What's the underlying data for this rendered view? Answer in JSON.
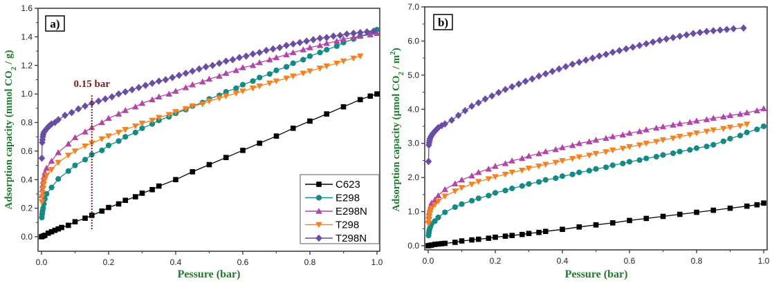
{
  "chart_data": [
    {
      "type": "line",
      "panel_label": "a)",
      "title": "",
      "xlabel": "Pessure (bar)",
      "ylabel": "Adsorption capacity (mmol CO",
      "ylabel_sub": "2",
      "ylabel_tail": " / g)",
      "xlim": [
        0.0,
        1.0
      ],
      "ylim": [
        -0.1,
        1.6
      ],
      "xticks": [
        "0.0",
        "0.2",
        "0.4",
        "0.6",
        "0.8",
        "1.0"
      ],
      "yticks": [
        "0.0",
        "0.2",
        "0.4",
        "0.6",
        "0.8",
        "1.0",
        "1.2",
        "1.4",
        "1.6"
      ],
      "grid": false,
      "legend_position": "bottom-right",
      "annotation": {
        "text": "0.15 bar",
        "x": 0.15,
        "y_from": 0.05,
        "y_to": 1.0,
        "color": "#7b1a1a"
      },
      "series": [
        {
          "name": "C623",
          "color": "#000000",
          "marker": "square",
          "x": [
            0.0,
            0.005,
            0.01,
            0.02,
            0.03,
            0.04,
            0.05,
            0.06,
            0.08,
            0.1,
            0.13,
            0.15,
            0.18,
            0.2,
            0.23,
            0.25,
            0.28,
            0.3,
            0.33,
            0.35,
            0.4,
            0.45,
            0.5,
            0.55,
            0.6,
            0.65,
            0.7,
            0.75,
            0.8,
            0.85,
            0.9,
            0.95,
            0.98,
            1.0
          ],
          "y": [
            0.0,
            0.005,
            0.01,
            0.025,
            0.035,
            0.045,
            0.055,
            0.065,
            0.08,
            0.105,
            0.13,
            0.15,
            0.18,
            0.205,
            0.23,
            0.255,
            0.28,
            0.305,
            0.33,
            0.355,
            0.4,
            0.455,
            0.505,
            0.555,
            0.605,
            0.655,
            0.705,
            0.76,
            0.81,
            0.86,
            0.91,
            0.96,
            0.985,
            1.0
          ]
        },
        {
          "name": "E298",
          "color": "#138a86",
          "marker": "circle",
          "x": [
            0.001,
            0.002,
            0.003,
            0.005,
            0.007,
            0.01,
            0.015,
            0.03,
            0.05,
            0.08,
            0.1,
            0.13,
            0.15,
            0.18,
            0.2,
            0.23,
            0.25,
            0.28,
            0.3,
            0.33,
            0.35,
            0.38,
            0.4,
            0.43,
            0.45,
            0.48,
            0.5,
            0.53,
            0.55,
            0.58,
            0.6,
            0.63,
            0.65,
            0.68,
            0.7,
            0.73,
            0.75,
            0.78,
            0.8,
            0.83,
            0.85,
            0.88,
            0.9,
            0.93,
            0.95,
            0.98,
            1.0
          ],
          "y": [
            0.135,
            0.16,
            0.18,
            0.2,
            0.23,
            0.265,
            0.3,
            0.345,
            0.405,
            0.46,
            0.5,
            0.54,
            0.575,
            0.605,
            0.64,
            0.67,
            0.7,
            0.73,
            0.76,
            0.79,
            0.815,
            0.84,
            0.865,
            0.89,
            0.915,
            0.94,
            0.965,
            0.99,
            1.015,
            1.04,
            1.065,
            1.09,
            1.115,
            1.14,
            1.165,
            1.19,
            1.215,
            1.24,
            1.265,
            1.29,
            1.31,
            1.335,
            1.36,
            1.385,
            1.405,
            1.425,
            1.45
          ]
        },
        {
          "name": "E298N",
          "color": "#b146a8",
          "marker": "triangle-up",
          "x": [
            0.001,
            0.002,
            0.003,
            0.005,
            0.007,
            0.01,
            0.015,
            0.03,
            0.05,
            0.08,
            0.1,
            0.13,
            0.15,
            0.18,
            0.2,
            0.23,
            0.25,
            0.28,
            0.3,
            0.33,
            0.35,
            0.38,
            0.4,
            0.43,
            0.45,
            0.48,
            0.5,
            0.53,
            0.55,
            0.58,
            0.6,
            0.63,
            0.65,
            0.68,
            0.7,
            0.73,
            0.75,
            0.78,
            0.8,
            0.83,
            0.85,
            0.88,
            0.9,
            0.93,
            0.95,
            0.98,
            1.0
          ],
          "y": [
            0.29,
            0.33,
            0.36,
            0.39,
            0.42,
            0.45,
            0.48,
            0.53,
            0.59,
            0.65,
            0.695,
            0.735,
            0.765,
            0.8,
            0.83,
            0.86,
            0.885,
            0.91,
            0.935,
            0.96,
            0.98,
            1.0,
            1.02,
            1.045,
            1.065,
            1.085,
            1.105,
            1.125,
            1.145,
            1.165,
            1.185,
            1.2,
            1.22,
            1.24,
            1.255,
            1.275,
            1.29,
            1.31,
            1.325,
            1.34,
            1.355,
            1.37,
            1.385,
            1.395,
            1.405,
            1.415,
            1.425
          ]
        },
        {
          "name": "T298",
          "color": "#f58220",
          "marker": "triangle-down",
          "x": [
            0.001,
            0.002,
            0.003,
            0.005,
            0.007,
            0.01,
            0.015,
            0.03,
            0.05,
            0.08,
            0.1,
            0.13,
            0.15,
            0.18,
            0.2,
            0.23,
            0.25,
            0.28,
            0.3,
            0.33,
            0.35,
            0.38,
            0.4,
            0.43,
            0.45,
            0.48,
            0.5,
            0.53,
            0.55,
            0.58,
            0.6,
            0.63,
            0.65,
            0.68,
            0.7,
            0.73,
            0.75,
            0.78,
            0.8,
            0.83,
            0.85,
            0.88,
            0.9,
            0.93,
            0.95
          ],
          "y": [
            0.245,
            0.28,
            0.31,
            0.34,
            0.37,
            0.4,
            0.43,
            0.47,
            0.52,
            0.57,
            0.6,
            0.635,
            0.655,
            0.685,
            0.705,
            0.73,
            0.75,
            0.775,
            0.795,
            0.815,
            0.835,
            0.855,
            0.875,
            0.895,
            0.915,
            0.93,
            0.95,
            0.97,
            0.985,
            1.005,
            1.02,
            1.04,
            1.055,
            1.075,
            1.09,
            1.11,
            1.125,
            1.145,
            1.16,
            1.18,
            1.195,
            1.215,
            1.23,
            1.25,
            1.265
          ]
        },
        {
          "name": "T298N",
          "color": "#6a4ca4",
          "marker": "diamond",
          "x": [
            0.001,
            0.002,
            0.003,
            0.004,
            0.005,
            0.007,
            0.01,
            0.013,
            0.017,
            0.02,
            0.025,
            0.03,
            0.04,
            0.05,
            0.07,
            0.09,
            0.11,
            0.13,
            0.15,
            0.17,
            0.19,
            0.21,
            0.23,
            0.25,
            0.27,
            0.29,
            0.31,
            0.33,
            0.35,
            0.37,
            0.39,
            0.41,
            0.43,
            0.45,
            0.47,
            0.49,
            0.51,
            0.53,
            0.55,
            0.57,
            0.59,
            0.61,
            0.63,
            0.65,
            0.67,
            0.69,
            0.71,
            0.73,
            0.75,
            0.77,
            0.79,
            0.81,
            0.83,
            0.85,
            0.87,
            0.89,
            0.91,
            0.93,
            0.95,
            0.97,
            0.99
          ],
          "y": [
            0.55,
            0.66,
            0.68,
            0.7,
            0.715,
            0.73,
            0.74,
            0.75,
            0.76,
            0.77,
            0.78,
            0.79,
            0.8,
            0.82,
            0.85,
            0.87,
            0.895,
            0.915,
            0.935,
            0.95,
            0.965,
            0.98,
            1.0,
            1.015,
            1.03,
            1.045,
            1.06,
            1.075,
            1.09,
            1.1,
            1.115,
            1.13,
            1.145,
            1.16,
            1.175,
            1.19,
            1.2,
            1.215,
            1.23,
            1.24,
            1.255,
            1.265,
            1.28,
            1.29,
            1.305,
            1.315,
            1.325,
            1.34,
            1.35,
            1.36,
            1.37,
            1.38,
            1.39,
            1.395,
            1.405,
            1.41,
            1.42,
            1.425,
            1.43,
            1.435,
            1.44
          ]
        }
      ]
    },
    {
      "type": "line",
      "panel_label": "b)",
      "title": "",
      "xlabel": "Pessure (bar)",
      "ylabel": "Adsorption capacity (µmol CO",
      "ylabel_sub": "2",
      "ylabel_tail": " / m",
      "ylabel_sup": "2",
      "ylabel_end": ")",
      "xlim": [
        0.0,
        1.0
      ],
      "ylim": [
        -0.1,
        7.0
      ],
      "xticks": [
        "0.0",
        "0.2",
        "0.4",
        "0.6",
        "0.8",
        "1.0"
      ],
      "yticks": [
        "0.0",
        "1.0",
        "2.0",
        "3.0",
        "4.0",
        "5.0",
        "6.0",
        "7.0"
      ],
      "grid": false,
      "series": [
        {
          "name": "C623",
          "color": "#000000",
          "marker": "square",
          "x": [
            0.0,
            0.005,
            0.01,
            0.02,
            0.03,
            0.04,
            0.05,
            0.08,
            0.1,
            0.13,
            0.15,
            0.18,
            0.2,
            0.23,
            0.25,
            0.28,
            0.3,
            0.33,
            0.35,
            0.4,
            0.45,
            0.5,
            0.55,
            0.6,
            0.65,
            0.7,
            0.75,
            0.8,
            0.85,
            0.9,
            0.95,
            0.98,
            1.0
          ],
          "y": [
            0.0,
            0.01,
            0.02,
            0.04,
            0.05,
            0.06,
            0.07,
            0.1,
            0.14,
            0.17,
            0.19,
            0.22,
            0.25,
            0.28,
            0.3,
            0.33,
            0.36,
            0.39,
            0.42,
            0.48,
            0.55,
            0.61,
            0.67,
            0.74,
            0.8,
            0.86,
            0.92,
            0.98,
            1.04,
            1.1,
            1.16,
            1.2,
            1.25
          ]
        },
        {
          "name": "E298",
          "color": "#138a86",
          "marker": "circle",
          "x": [
            0.001,
            0.002,
            0.003,
            0.005,
            0.007,
            0.01,
            0.02,
            0.03,
            0.05,
            0.08,
            0.1,
            0.13,
            0.15,
            0.18,
            0.2,
            0.23,
            0.25,
            0.28,
            0.3,
            0.33,
            0.35,
            0.38,
            0.4,
            0.43,
            0.45,
            0.48,
            0.5,
            0.53,
            0.55,
            0.58,
            0.6,
            0.63,
            0.65,
            0.68,
            0.7,
            0.73,
            0.75,
            0.78,
            0.8,
            0.83,
            0.85,
            0.88,
            0.9,
            0.93,
            0.95,
            0.98,
            1.0
          ],
          "y": [
            0.3,
            0.38,
            0.45,
            0.52,
            0.58,
            0.65,
            0.72,
            0.83,
            0.98,
            1.13,
            1.22,
            1.32,
            1.39,
            1.47,
            1.55,
            1.62,
            1.68,
            1.75,
            1.81,
            1.87,
            1.93,
            1.98,
            2.04,
            2.09,
            2.15,
            2.2,
            2.25,
            2.3,
            2.36,
            2.41,
            2.46,
            2.51,
            2.56,
            2.61,
            2.66,
            2.71,
            2.76,
            2.81,
            2.86,
            2.91,
            2.96,
            3.06,
            3.14,
            3.23,
            3.32,
            3.41,
            3.5
          ]
        },
        {
          "name": "E298N",
          "color": "#b146a8",
          "marker": "triangle-up",
          "x": [
            0.001,
            0.002,
            0.003,
            0.005,
            0.007,
            0.01,
            0.02,
            0.03,
            0.05,
            0.08,
            0.1,
            0.13,
            0.15,
            0.18,
            0.2,
            0.23,
            0.25,
            0.28,
            0.3,
            0.33,
            0.35,
            0.38,
            0.4,
            0.43,
            0.45,
            0.48,
            0.5,
            0.53,
            0.55,
            0.58,
            0.6,
            0.63,
            0.65,
            0.68,
            0.7,
            0.73,
            0.75,
            0.78,
            0.8,
            0.83,
            0.85,
            0.88,
            0.9,
            0.93,
            0.95,
            0.98,
            1.0
          ],
          "y": [
            0.75,
            0.88,
            0.98,
            1.07,
            1.15,
            1.25,
            1.35,
            1.47,
            1.65,
            1.82,
            1.93,
            2.05,
            2.15,
            2.25,
            2.33,
            2.41,
            2.49,
            2.56,
            2.63,
            2.7,
            2.76,
            2.82,
            2.88,
            2.94,
            3.0,
            3.05,
            3.1,
            3.15,
            3.2,
            3.25,
            3.3,
            3.35,
            3.4,
            3.45,
            3.49,
            3.54,
            3.58,
            3.62,
            3.66,
            3.7,
            3.74,
            3.78,
            3.82,
            3.86,
            3.9,
            3.96,
            4.02
          ]
        },
        {
          "name": "T298",
          "color": "#f58220",
          "marker": "triangle-down",
          "x": [
            0.001,
            0.002,
            0.003,
            0.005,
            0.007,
            0.01,
            0.02,
            0.03,
            0.05,
            0.08,
            0.1,
            0.13,
            0.15,
            0.18,
            0.2,
            0.23,
            0.25,
            0.28,
            0.3,
            0.33,
            0.35,
            0.38,
            0.4,
            0.43,
            0.45,
            0.48,
            0.5,
            0.53,
            0.55,
            0.58,
            0.6,
            0.63,
            0.65,
            0.68,
            0.7,
            0.73,
            0.75,
            0.78,
            0.8,
            0.83,
            0.85,
            0.88,
            0.9,
            0.93,
            0.95
          ],
          "y": [
            0.65,
            0.75,
            0.85,
            0.95,
            1.02,
            1.1,
            1.2,
            1.3,
            1.45,
            1.6,
            1.7,
            1.8,
            1.88,
            1.96,
            2.02,
            2.09,
            2.15,
            2.21,
            2.27,
            2.33,
            2.38,
            2.44,
            2.49,
            2.55,
            2.6,
            2.65,
            2.7,
            2.75,
            2.8,
            2.85,
            2.9,
            2.95,
            3.0,
            3.05,
            3.1,
            3.15,
            3.2,
            3.25,
            3.3,
            3.35,
            3.39,
            3.43,
            3.47,
            3.51,
            3.56
          ]
        },
        {
          "name": "T298N",
          "color": "#6a4ca4",
          "marker": "diamond",
          "x": [
            0.001,
            0.002,
            0.003,
            0.004,
            0.005,
            0.007,
            0.01,
            0.013,
            0.017,
            0.02,
            0.025,
            0.03,
            0.04,
            0.05,
            0.07,
            0.09,
            0.11,
            0.13,
            0.15,
            0.17,
            0.19,
            0.21,
            0.23,
            0.25,
            0.27,
            0.29,
            0.31,
            0.33,
            0.35,
            0.37,
            0.39,
            0.41,
            0.43,
            0.45,
            0.47,
            0.49,
            0.51,
            0.53,
            0.55,
            0.57,
            0.59,
            0.61,
            0.63,
            0.65,
            0.67,
            0.69,
            0.71,
            0.73,
            0.75,
            0.77,
            0.79,
            0.81,
            0.83,
            0.85,
            0.87,
            0.89,
            0.91,
            0.94
          ],
          "y": [
            2.47,
            2.95,
            3.02,
            3.08,
            3.13,
            3.18,
            3.23,
            3.28,
            3.32,
            3.36,
            3.41,
            3.46,
            3.52,
            3.57,
            3.68,
            3.82,
            3.96,
            4.09,
            4.19,
            4.3,
            4.39,
            4.49,
            4.58,
            4.66,
            4.74,
            4.82,
            4.89,
            4.97,
            5.04,
            5.11,
            5.18,
            5.25,
            5.32,
            5.38,
            5.44,
            5.5,
            5.56,
            5.61,
            5.67,
            5.72,
            5.77,
            5.82,
            5.87,
            5.92,
            5.97,
            6.02,
            6.06,
            6.1,
            6.14,
            6.18,
            6.22,
            6.25,
            6.28,
            6.3,
            6.32,
            6.34,
            6.36,
            6.38
          ]
        }
      ]
    }
  ]
}
